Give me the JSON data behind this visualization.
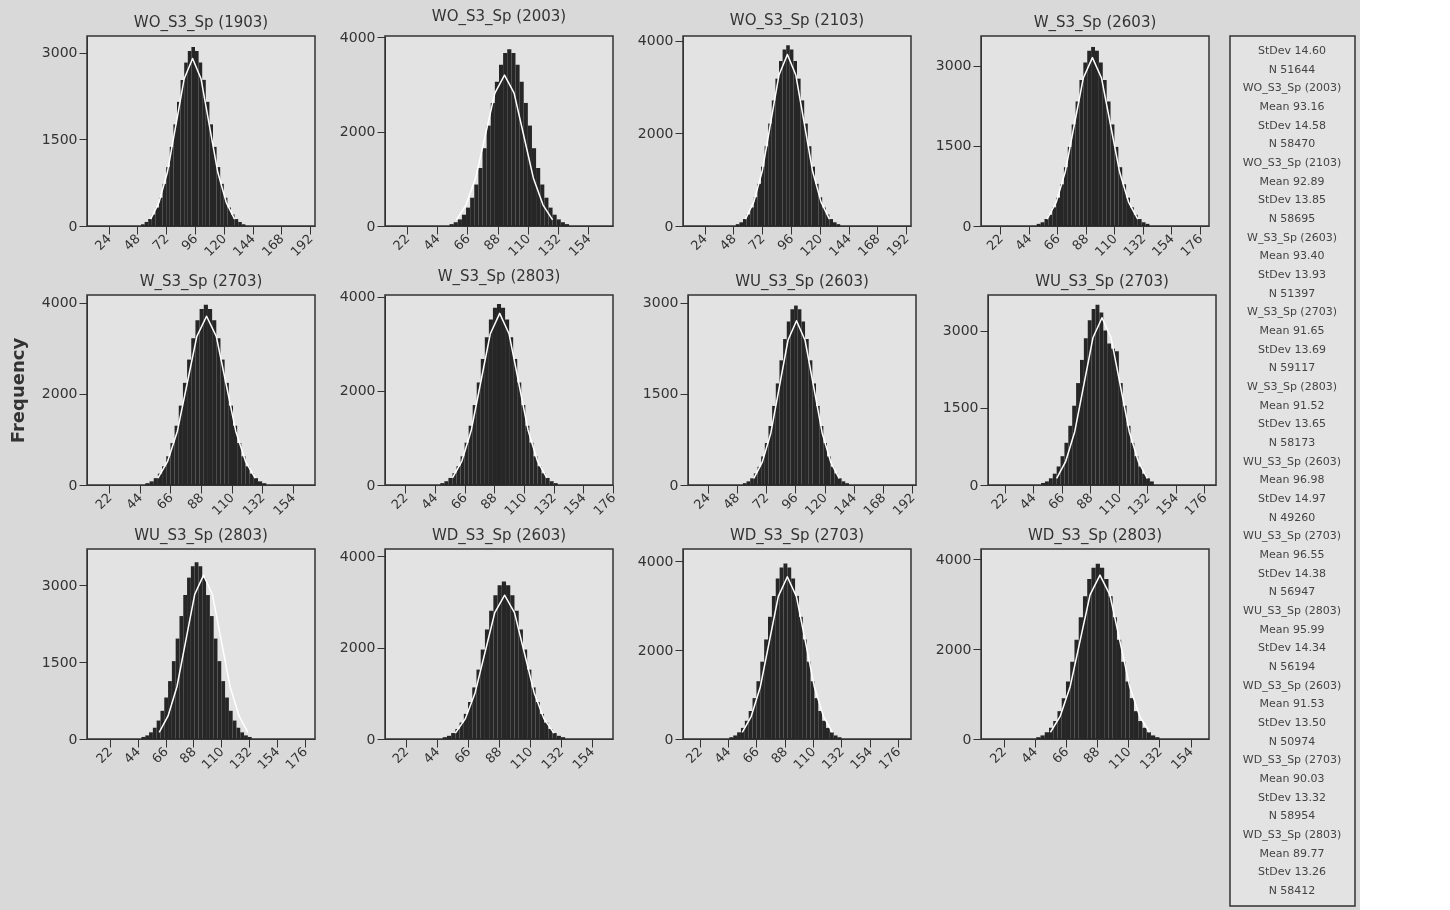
{
  "chart_data": [
    {
      "type": "histogram",
      "title": "WO_S3_Sp (1903)",
      "color": "#262626",
      "xlim": [
        6,
        196
      ],
      "xticks": [
        24,
        48,
        72,
        96,
        120,
        144,
        168,
        192
      ],
      "ylim": [
        0,
        3290
      ],
      "yticks": [
        0,
        1500,
        3000
      ],
      "bins": [
        51,
        54,
        57,
        60,
        63,
        66,
        69,
        72,
        75,
        78,
        81,
        84,
        87,
        90,
        93,
        96,
        99,
        102,
        105,
        108,
        111,
        114,
        117,
        120,
        123,
        126,
        129,
        132,
        135,
        138
      ],
      "values": [
        30,
        70,
        120,
        200,
        320,
        490,
        730,
        1020,
        1370,
        1760,
        2150,
        2530,
        2830,
        3030,
        3100,
        3030,
        2830,
        2530,
        2150,
        1760,
        1370,
        1020,
        730,
        490,
        320,
        200,
        120,
        70,
        30
      ],
      "series": [
        {
          "type": "line",
          "color": "#ffffff",
          "x": [
            59,
            66,
            73,
            80,
            87,
            94,
            101,
            108,
            115,
            122,
            129
          ],
          "values": [
            120,
            410,
            930,
            1740,
            2550,
            2900,
            2550,
            1740,
            930,
            410,
            120
          ]
        }
      ]
    },
    {
      "type": "histogram",
      "title": "WO_S3_Sp (2003)",
      "color": "#262626",
      "xlim": [
        6,
        172
      ],
      "xticks": [
        22,
        44,
        66,
        88,
        110,
        132,
        154
      ],
      "ylim": [
        0,
        4030
      ],
      "yticks": [
        0,
        2000,
        4000
      ],
      "bins": [
        53,
        56,
        59,
        62,
        65,
        68,
        71,
        74,
        77,
        80,
        83,
        86,
        89,
        92,
        95,
        98,
        101,
        104,
        107,
        110,
        113,
        116,
        119,
        122,
        125,
        128,
        131,
        134,
        137,
        140
      ],
      "values": [
        40,
        80,
        140,
        240,
        390,
        600,
        880,
        1230,
        1650,
        2130,
        2610,
        3060,
        3420,
        3670,
        3750,
        3670,
        3420,
        3060,
        2610,
        2130,
        1650,
        1230,
        880,
        600,
        390,
        240,
        140,
        80,
        40
      ],
      "series": [
        {
          "type": "line",
          "color": "#ffffff",
          "x": [
            58,
            65,
            72,
            79,
            86,
            93,
            100,
            107,
            114,
            121,
            128
          ],
          "values": [
            130,
            450,
            1020,
            1920,
            2820,
            3200,
            2820,
            1920,
            1020,
            450,
            130
          ]
        }
      ]
    },
    {
      "type": "histogram",
      "title": "WO_S3_Sp (2103)",
      "color": "#262626",
      "xlim": [
        6,
        196
      ],
      "xticks": [
        24,
        48,
        72,
        96,
        120,
        144,
        168,
        192
      ],
      "ylim": [
        0,
        4100
      ],
      "yticks": [
        0,
        2000,
        4000
      ],
      "bins": [
        50,
        53,
        56,
        59,
        62,
        65,
        68,
        71,
        74,
        77,
        80,
        83,
        86,
        89,
        92,
        95,
        98,
        101,
        104,
        107,
        110,
        113,
        116,
        119,
        122,
        125,
        128,
        131,
        134,
        137
      ],
      "values": [
        40,
        80,
        150,
        250,
        400,
        620,
        910,
        1280,
        1720,
        2210,
        2710,
        3180,
        3560,
        3810,
        3900,
        3810,
        3560,
        3180,
        2710,
        2210,
        1720,
        1280,
        910,
        620,
        400,
        250,
        150,
        80,
        40
      ],
      "series": [
        {
          "type": "line",
          "color": "#ffffff",
          "x": [
            58,
            65,
            72,
            79,
            86,
            93,
            100,
            107,
            114,
            121,
            128
          ],
          "values": [
            150,
            520,
            1180,
            2220,
            3260,
            3700,
            3260,
            2220,
            1180,
            520,
            150
          ]
        }
      ]
    },
    {
      "type": "histogram",
      "title": "W_S3_Sp (2603)",
      "color": "#262626",
      "xlim": [
        7,
        183
      ],
      "xticks": [
        22,
        44,
        66,
        88,
        110,
        132,
        154,
        176
      ],
      "ylim": [
        0,
        3555
      ],
      "yticks": [
        0,
        1500,
        3000
      ],
      "bins": [
        50,
        53,
        56,
        59,
        62,
        65,
        68,
        71,
        74,
        77,
        80,
        83,
        86,
        89,
        92,
        95,
        98,
        101,
        104,
        107,
        110,
        113,
        116,
        119,
        122,
        125,
        128,
        131,
        134,
        137
      ],
      "values": [
        40,
        70,
        130,
        210,
        350,
        530,
        780,
        1100,
        1480,
        1900,
        2330,
        2730,
        3060,
        3280,
        3350,
        3280,
        3060,
        2730,
        2330,
        1900,
        1480,
        1100,
        780,
        530,
        350,
        210,
        130,
        70,
        40
      ],
      "series": [
        {
          "type": "line",
          "color": "#ffffff",
          "x": [
            58,
            65,
            72,
            79,
            86,
            93,
            100,
            107,
            114,
            121,
            128
          ],
          "values": [
            130,
            440,
            1010,
            1890,
            2770,
            3150,
            2770,
            1890,
            1010,
            440,
            130
          ]
        }
      ]
    },
    {
      "type": "histogram",
      "title": "W_S3_Sp (2703)",
      "ylabel": "Frequency",
      "color": "#262626",
      "xlim": [
        6,
        170
      ],
      "xticks": [
        22,
        44,
        66,
        88,
        110,
        132,
        154
      ],
      "ylim": [
        0,
        4166
      ],
      "yticks": [
        0,
        2000,
        4000
      ],
      "bins": [
        48,
        51,
        54,
        57,
        60,
        63,
        66,
        69,
        72,
        75,
        78,
        81,
        84,
        87,
        90,
        93,
        96,
        99,
        102,
        105,
        108,
        111,
        114,
        117,
        120,
        123,
        126,
        129,
        132,
        135
      ],
      "values": [
        40,
        80,
        150,
        250,
        410,
        630,
        920,
        1300,
        1740,
        2240,
        2750,
        3220,
        3610,
        3860,
        3950,
        3860,
        3610,
        3220,
        2750,
        2240,
        1740,
        1300,
        920,
        630,
        410,
        250,
        150,
        80,
        40
      ],
      "series": [
        {
          "type": "line",
          "color": "#ffffff",
          "x": [
            57,
            64,
            71,
            78,
            85,
            92,
            99,
            106,
            113,
            120,
            127
          ],
          "values": [
            150,
            520,
            1180,
            2220,
            3260,
            3700,
            3260,
            2220,
            1180,
            520,
            150
          ]
        }
      ]
    },
    {
      "type": "histogram",
      "title": "W_S3_Sp (2803)",
      "color": "#262626",
      "xlim": [
        7,
        176
      ],
      "xticks": [
        22,
        44,
        66,
        88,
        110,
        132,
        154,
        176
      ],
      "ylim": [
        0,
        4040
      ],
      "yticks": [
        0,
        2000,
        4000
      ],
      "bins": [
        48,
        51,
        54,
        57,
        60,
        63,
        66,
        69,
        72,
        75,
        78,
        81,
        84,
        87,
        90,
        93,
        96,
        99,
        102,
        105,
        108,
        111,
        114,
        117,
        120,
        123,
        126,
        129,
        132,
        135
      ],
      "values": [
        40,
        80,
        150,
        250,
        400,
        610,
        900,
        1260,
        1700,
        2180,
        2680,
        3140,
        3520,
        3770,
        3850,
        3770,
        3520,
        3140,
        2680,
        2180,
        1700,
        1260,
        900,
        610,
        400,
        250,
        150,
        80,
        40
      ],
      "series": [
        {
          "type": "line",
          "color": "#ffffff",
          "x": [
            57,
            64,
            71,
            78,
            85,
            92,
            99,
            106,
            113,
            120,
            127
          ],
          "values": [
            150,
            510,
            1170,
            2190,
            3210,
            3650,
            3210,
            2190,
            1170,
            510,
            150
          ]
        }
      ]
    },
    {
      "type": "histogram",
      "title": "WU_S3_Sp (2603)",
      "color": "#262626",
      "xlim": [
        8,
        195
      ],
      "xticks": [
        24,
        48,
        72,
        96,
        120,
        144,
        168,
        192
      ],
      "ylim": [
        0,
        3124
      ],
      "yticks": [
        0,
        1500,
        3000
      ],
      "bins": [
        53,
        56,
        59,
        62,
        65,
        68,
        71,
        74,
        77,
        80,
        83,
        86,
        89,
        92,
        95,
        98,
        101,
        104,
        107,
        110,
        113,
        116,
        119,
        122,
        125,
        128,
        131,
        134,
        137,
        140
      ],
      "values": [
        30,
        60,
        110,
        190,
        300,
        470,
        690,
        970,
        1300,
        1670,
        2050,
        2400,
        2690,
        2890,
        2950,
        2890,
        2690,
        2400,
        2050,
        1670,
        1300,
        970,
        690,
        470,
        300,
        190,
        110,
        60,
        30
      ],
      "series": [
        {
          "type": "line",
          "color": "#ffffff",
          "x": [
            62,
            69,
            76,
            83,
            90,
            97,
            104,
            111,
            118,
            125,
            132
          ],
          "values": [
            110,
            380,
            860,
            1620,
            2380,
            2700,
            2380,
            1620,
            860,
            380,
            110
          ]
        }
      ]
    },
    {
      "type": "histogram",
      "title": "WU_S3_Sp (2703)",
      "color": "#262626",
      "xlim": [
        9,
        185
      ],
      "xticks": [
        22,
        44,
        66,
        88,
        110,
        132,
        154,
        176
      ],
      "ylim": [
        0,
        3691
      ],
      "yticks": [
        0,
        1500,
        3000
      ],
      "bins": [
        50,
        53,
        56,
        59,
        62,
        65,
        68,
        71,
        74,
        77,
        80,
        83,
        86,
        89,
        92,
        95,
        98,
        101,
        104,
        107,
        110,
        113,
        116,
        119,
        122,
        125,
        128,
        131,
        134,
        137
      ],
      "values": [
        40,
        70,
        130,
        220,
        360,
        560,
        820,
        1150,
        1540,
        1980,
        2430,
        2850,
        3200,
        3420,
        3500,
        3350,
        3000,
        2750,
        2650,
        2600,
        1980,
        1540,
        1150,
        820,
        560,
        360,
        220,
        130,
        70
      ],
      "series": [
        {
          "type": "line",
          "color": "#ffffff",
          "x": [
            62,
            69,
            76,
            83,
            90,
            97,
            104,
            111,
            118,
            125,
            132
          ],
          "values": [
            130,
            460,
            1040,
            1950,
            2860,
            3250,
            2860,
            1950,
            1040,
            460,
            130
          ]
        }
      ]
    },
    {
      "type": "histogram",
      "title": "WU_S3_Sp (2803)",
      "color": "#262626",
      "xlim": [
        4,
        184
      ],
      "xticks": [
        22,
        44,
        66,
        88,
        110,
        132,
        154,
        176
      ],
      "ylim": [
        0,
        3709
      ],
      "yticks": [
        0,
        1500,
        3000
      ],
      "bins": [
        47,
        50,
        53,
        56,
        59,
        62,
        65,
        68,
        71,
        74,
        77,
        80,
        83,
        86,
        89,
        92,
        95,
        98,
        101,
        104,
        107,
        110,
        113,
        116,
        119,
        122,
        125,
        128,
        131,
        134
      ],
      "values": [
        40,
        70,
        130,
        220,
        360,
        550,
        810,
        1130,
        1520,
        1960,
        2400,
        2810,
        3150,
        3370,
        3450,
        3370,
        3150,
        2810,
        2400,
        1960,
        1520,
        1130,
        810,
        550,
        360,
        220,
        130,
        70,
        40
      ],
      "series": [
        {
          "type": "line",
          "color": "#ffffff",
          "x": [
            61,
            68,
            75,
            82,
            89,
            96,
            103,
            110,
            117,
            124,
            131
          ],
          "values": [
            130,
            450,
            1020,
            1920,
            2820,
            3200,
            2820,
            1920,
            1020,
            450,
            130
          ]
        }
      ]
    },
    {
      "type": "histogram",
      "title": "WD_S3_Sp (2603)",
      "color": "#262626",
      "xlim": [
        7,
        169
      ],
      "xticks": [
        22,
        44,
        66,
        88,
        110,
        132,
        154
      ],
      "ylim": [
        0,
        4163
      ],
      "yticks": [
        0,
        2000,
        4000
      ],
      "bins": [
        48,
        51,
        54,
        57,
        60,
        63,
        66,
        69,
        72,
        75,
        78,
        81,
        84,
        87,
        90,
        93,
        96,
        99,
        102,
        105,
        108,
        111,
        114,
        117,
        120,
        123,
        126,
        129,
        132,
        135
      ],
      "values": [
        40,
        70,
        130,
        220,
        360,
        550,
        810,
        1130,
        1520,
        1960,
        2400,
        2810,
        3150,
        3370,
        3450,
        3370,
        3150,
        2810,
        2400,
        1960,
        1520,
        1130,
        810,
        550,
        360,
        220,
        130,
        70,
        40
      ],
      "series": [
        {
          "type": "line",
          "color": "#ffffff",
          "x": [
            57,
            64,
            71,
            78,
            85,
            92,
            99,
            106,
            113,
            120,
            127
          ],
          "values": [
            130,
            440,
            1010,
            1890,
            2770,
            3150,
            2770,
            1890,
            1010,
            440,
            130
          ]
        }
      ]
    },
    {
      "type": "histogram",
      "title": "WD_S3_Sp (2703)",
      "color": "#262626",
      "xlim": [
        9,
        186
      ],
      "xticks": [
        22,
        44,
        66,
        88,
        110,
        132,
        154,
        176
      ],
      "ylim": [
        0,
        4275
      ],
      "yticks": [
        0,
        2000,
        4000
      ],
      "bins": [
        45,
        48,
        51,
        54,
        57,
        60,
        63,
        66,
        69,
        72,
        75,
        78,
        81,
        84,
        87,
        90,
        93,
        96,
        99,
        102,
        105,
        108,
        111,
        114,
        117,
        120,
        123,
        126,
        129,
        132
      ],
      "values": [
        40,
        80,
        150,
        250,
        410,
        630,
        920,
        1300,
        1740,
        2240,
        2750,
        3220,
        3610,
        3860,
        3950,
        3860,
        3610,
        3220,
        2750,
        2240,
        1740,
        1300,
        920,
        630,
        410,
        250,
        150,
        80,
        40
      ],
      "series": [
        {
          "type": "line",
          "color": "#ffffff",
          "x": [
            55,
            62,
            69,
            76,
            83,
            90,
            97,
            104,
            111,
            118,
            125
          ],
          "values": [
            150,
            510,
            1170,
            2190,
            3210,
            3650,
            3210,
            2190,
            1170,
            510,
            150
          ]
        }
      ]
    },
    {
      "type": "histogram",
      "title": "WD_S3_Sp (2803)",
      "color": "#262626",
      "xlim": [
        6,
        167
      ],
      "xticks": [
        22,
        44,
        66,
        88,
        110,
        132,
        154
      ],
      "ylim": [
        0,
        4230
      ],
      "yticks": [
        0,
        2000,
        4000
      ],
      "bins": [
        45,
        48,
        51,
        54,
        57,
        60,
        63,
        66,
        69,
        72,
        75,
        78,
        81,
        84,
        87,
        90,
        93,
        96,
        99,
        102,
        105,
        108,
        111,
        114,
        117,
        120,
        123,
        126,
        129,
        132
      ],
      "values": [
        40,
        80,
        150,
        250,
        400,
        620,
        910,
        1280,
        1720,
        2210,
        2710,
        3180,
        3560,
        3810,
        3900,
        3810,
        3560,
        3180,
        2710,
        2210,
        1720,
        1280,
        910,
        620,
        400,
        250,
        150,
        80,
        40
      ],
      "series": [
        {
          "type": "line",
          "color": "#ffffff",
          "x": [
            55,
            62,
            69,
            76,
            83,
            90,
            97,
            104,
            111,
            118,
            125
          ],
          "values": [
            150,
            510,
            1170,
            2190,
            3210,
            3650,
            3210,
            2190,
            1170,
            510,
            150
          ]
        }
      ]
    },
    {
      "type": "other",
      "annotations": [
        "StDev 14.60",
        "N 51644",
        "WO_S3_Sp (2003)",
        "Mean 93.16",
        "StDev 14.58",
        "N 58470",
        "WO_S3_Sp (2103)",
        "Mean 92.89",
        "StDev 13.85",
        "N 58695",
        "W_S3_Sp (2603)",
        "Mean 93.40",
        "StDev 13.93",
        "N 51397",
        "W_S3_Sp (2703)",
        "Mean 91.65",
        "StDev 13.69",
        "N 59117",
        "W_S3_Sp (2803)",
        "Mean 91.52",
        "StDev 13.65",
        "N 58173",
        "WU_S3_Sp (2603)",
        "Mean 96.98",
        "StDev 14.97",
        "N 49260",
        "WU_S3_Sp (2703)",
        "Mean 96.55",
        "StDev 14.38",
        "N 56947",
        "WU_S3_Sp (2803)",
        "Mean 95.99",
        "StDev 14.34",
        "N 56194",
        "WD_S3_Sp (2603)",
        "Mean 91.53",
        "StDev 13.50",
        "N 50974",
        "WD_S3_Sp (2703)",
        "Mean 90.03",
        "StDev 13.32",
        "N 58954",
        "WD_S3_Sp (2803)",
        "Mean 89.77",
        "StDev 13.26",
        "N 58412"
      ]
    }
  ]
}
